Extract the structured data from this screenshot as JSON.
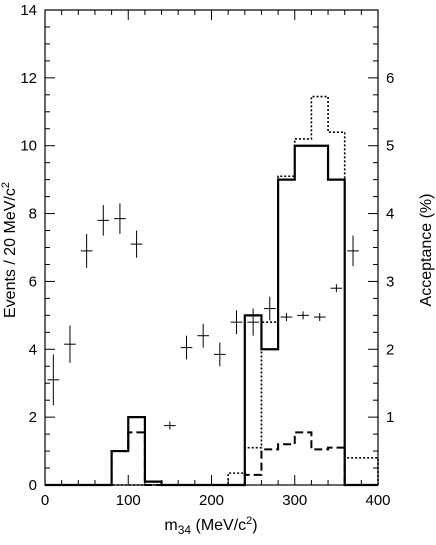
{
  "chart_data": {
    "type": "histogram",
    "xlabel": "m<sub>34</sub> (MeV/c<sup>2</sup>)",
    "xlabel_parts": {
      "main": "m",
      "sub": "34",
      "unit_open": " (MeV/c",
      "sup": "2",
      "unit_close": ")"
    },
    "ylabel_left_parts": {
      "main": "Events / 20 MeV/c",
      "sup": "2"
    },
    "ylabel_right": "Acceptance (%)",
    "xlim": [
      0,
      400
    ],
    "ylim_left": [
      0,
      14
    ],
    "ylim_right": [
      0,
      7
    ],
    "x_ticks": [
      0,
      100,
      200,
      300,
      400
    ],
    "y_left_ticks": [
      0,
      2,
      4,
      6,
      8,
      10,
      12,
      14
    ],
    "y_right_ticks": [
      1,
      2,
      3,
      4,
      5,
      6
    ],
    "series": [
      {
        "style": "data-points",
        "x": [
          10,
          30,
          50,
          70,
          90,
          110,
          150,
          170,
          190,
          210,
          230,
          250,
          270,
          290,
          310,
          330,
          350,
          370
        ],
        "y": [
          3.1,
          4.15,
          6.9,
          7.8,
          7.85,
          7.1,
          1.75,
          4.05,
          4.4,
          3.85,
          4.8,
          4.8,
          5.2,
          4.95,
          5.0,
          4.95,
          5.8,
          6.9
        ],
        "yerr": [
          0.75,
          0.55,
          0.5,
          0.45,
          0.45,
          0.4,
          0.0,
          0.35,
          0.35,
          0.35,
          0.35,
          0.4,
          0.35,
          0.0,
          0.0,
          0.0,
          0.0,
          0.45
        ]
      },
      {
        "style": "solid-histogram",
        "bin_edges": [
          0,
          20,
          40,
          60,
          80,
          100,
          120,
          140,
          160,
          180,
          200,
          220,
          240,
          260,
          280,
          300,
          320,
          340,
          360,
          380,
          400
        ],
        "counts": [
          0,
          0,
          0,
          0,
          1.0,
          2.0,
          0.1,
          0,
          0,
          0,
          0,
          0,
          5.0,
          4.0,
          9.0,
          10.0,
          10.0,
          9.0,
          0,
          0
        ]
      },
      {
        "style": "dashed-histogram",
        "bin_edges": [
          0,
          20,
          40,
          60,
          80,
          100,
          120,
          140,
          160,
          180,
          200,
          220,
          240,
          260,
          280,
          300,
          320,
          340,
          360,
          380,
          400
        ],
        "counts": [
          0,
          0,
          0,
          0,
          1.0,
          1.55,
          0,
          0,
          0,
          0,
          0,
          0,
          0.3,
          1.05,
          1.2,
          1.55,
          1.05,
          1.1,
          0,
          0
        ]
      },
      {
        "style": "dotted-histogram",
        "bin_edges": [
          0,
          20,
          40,
          60,
          80,
          100,
          120,
          140,
          160,
          180,
          200,
          220,
          240,
          260,
          280,
          300,
          320,
          340,
          360,
          380,
          400
        ],
        "counts": [
          0,
          0,
          0,
          0,
          0,
          0,
          0,
          0,
          0,
          0,
          0,
          0.35,
          1.1,
          4.8,
          9.1,
          10.2,
          11.45,
          10.4,
          0.8,
          0.8
        ]
      }
    ]
  }
}
